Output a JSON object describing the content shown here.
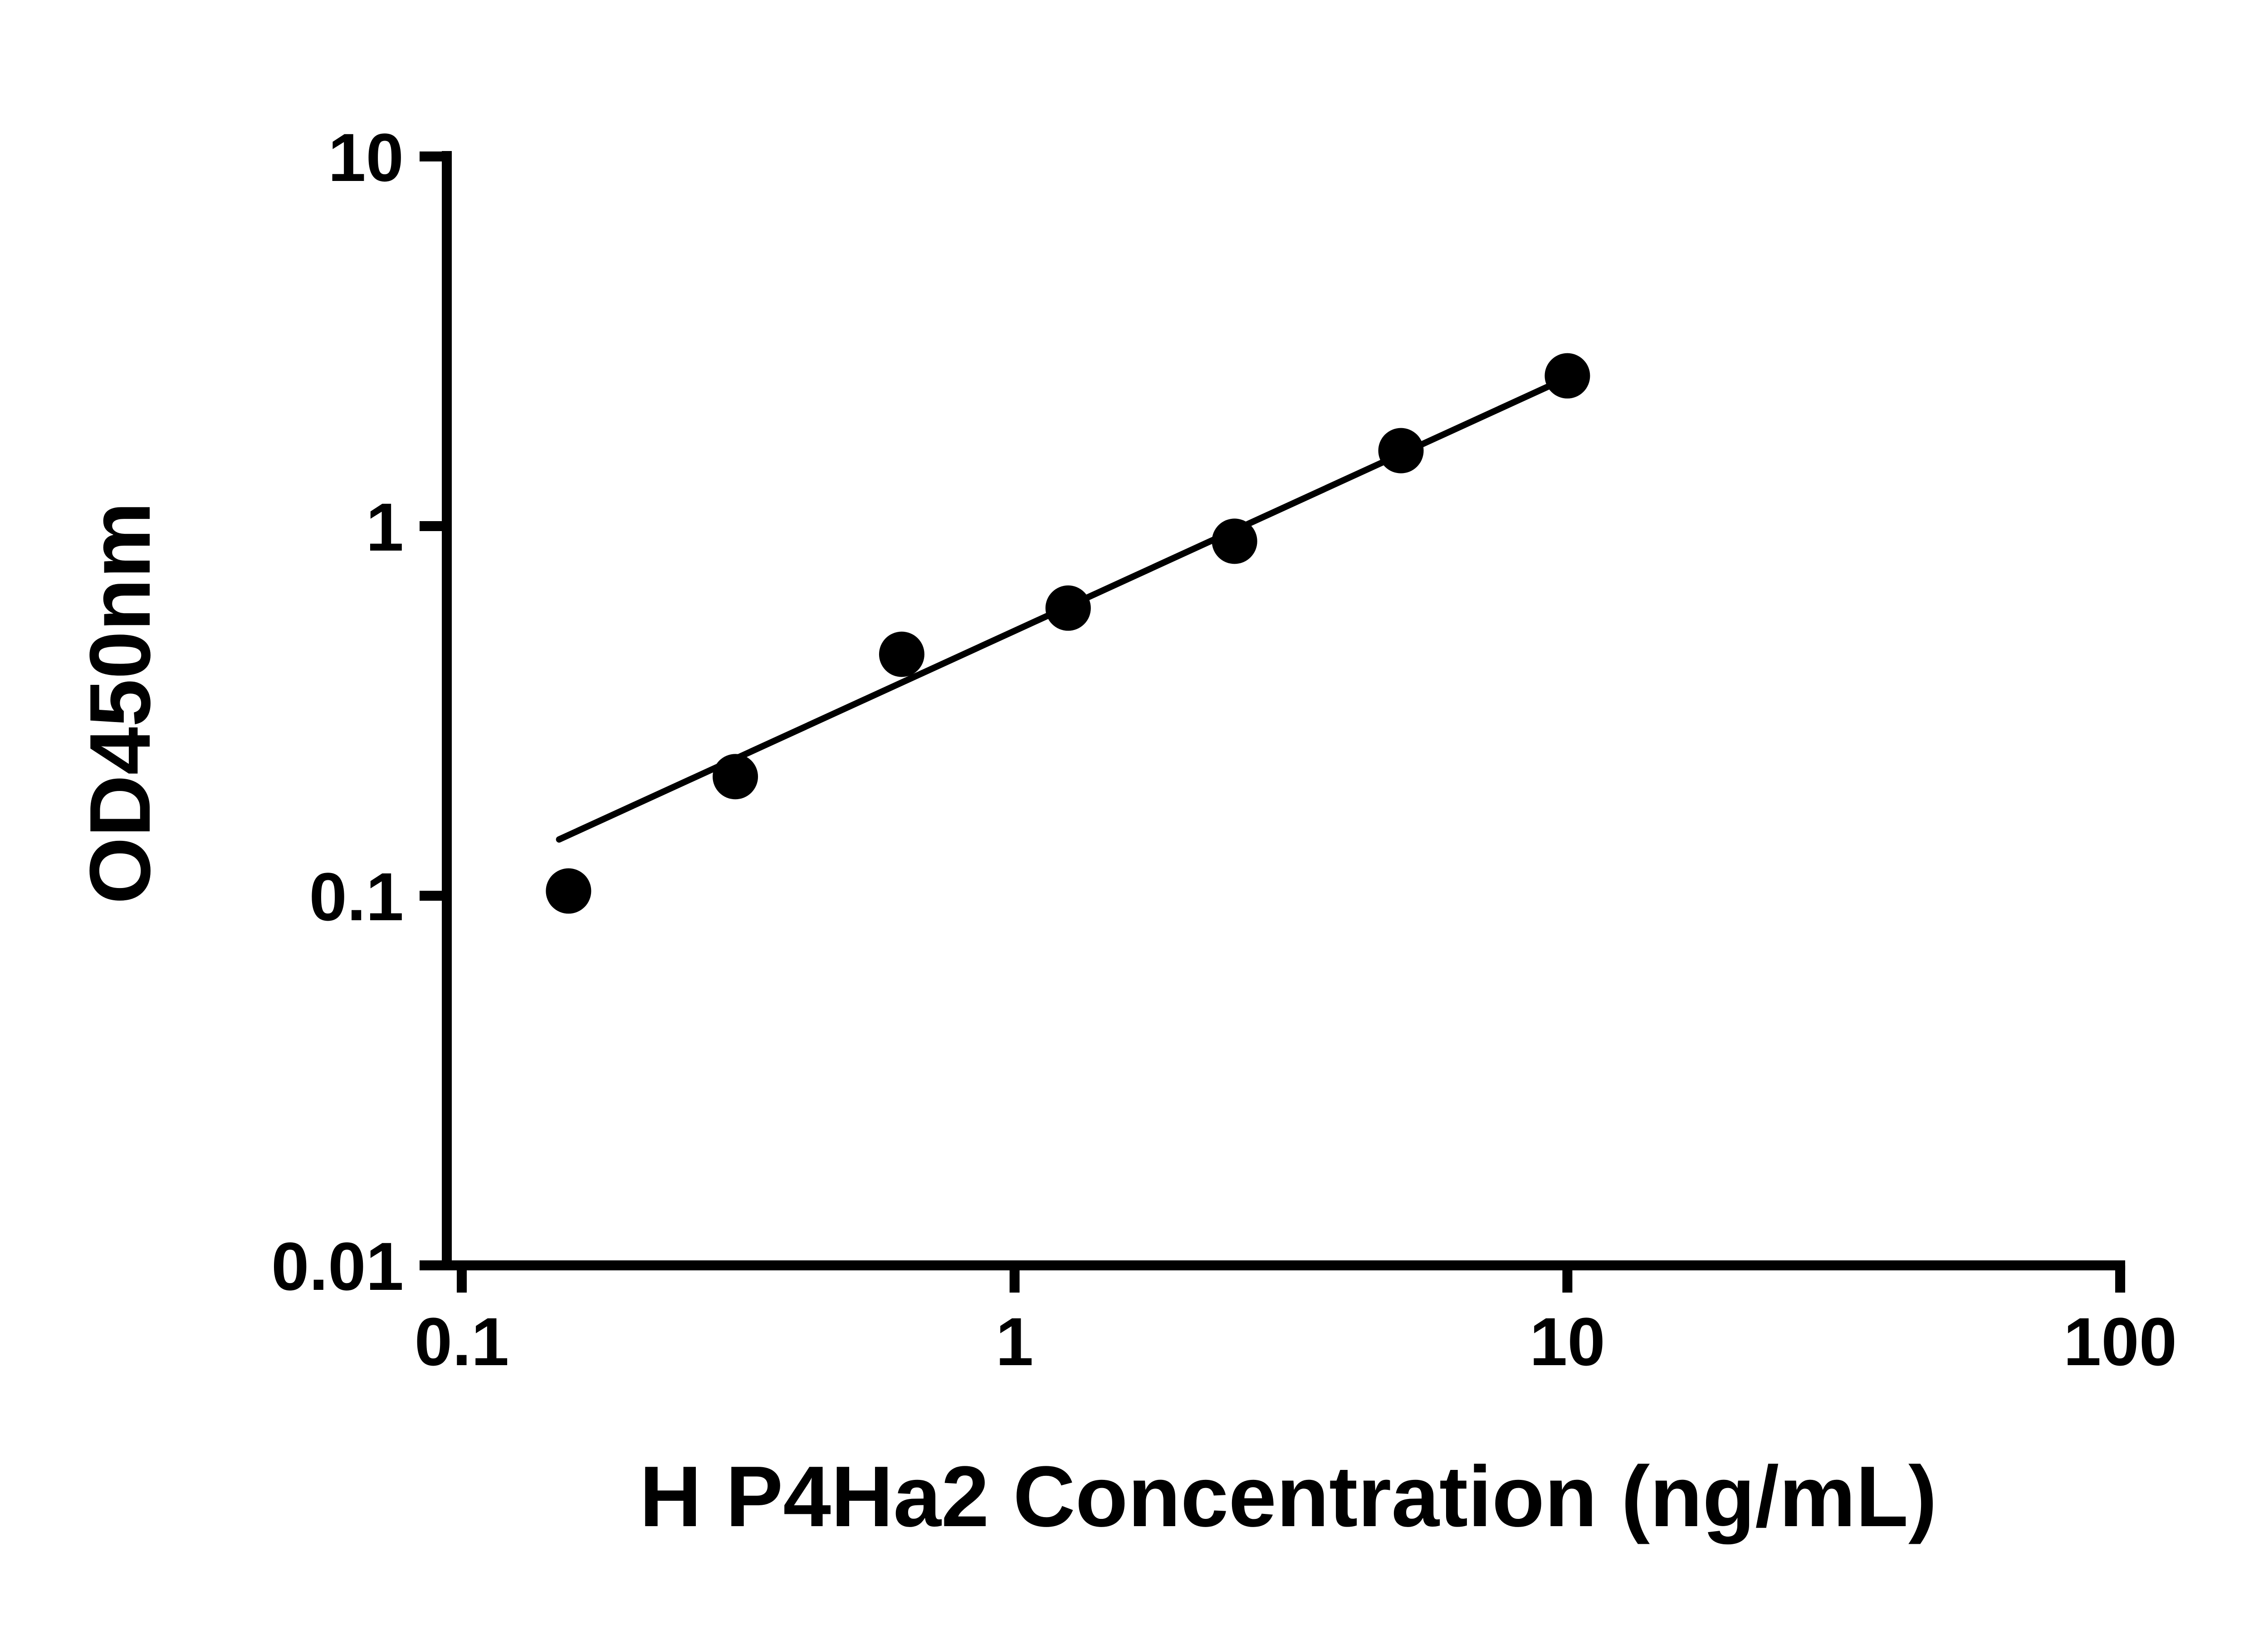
{
  "chart_data": {
    "type": "scatter",
    "title": "",
    "xlabel": "H P4Ha2 Concentration (ng/mL)",
    "ylabel": "OD450nm",
    "x_scale": "log",
    "y_scale": "log",
    "xlim": [
      0.1,
      100
    ],
    "ylim": [
      0.01,
      10
    ],
    "grid": false,
    "legend": false,
    "x_ticks": [
      {
        "value": 0.1,
        "label": "0.1"
      },
      {
        "value": 1,
        "label": "1"
      },
      {
        "value": 10,
        "label": "10"
      },
      {
        "value": 100,
        "label": "100"
      }
    ],
    "y_ticks": [
      {
        "value": 10,
        "label": "10"
      },
      {
        "value": 1,
        "label": "1"
      },
      {
        "value": 0.1,
        "label": "0.1"
      },
      {
        "value": 0.01,
        "label": "0.01"
      }
    ],
    "points": [
      {
        "x": 0.156,
        "y": 0.103
      },
      {
        "x": 0.3125,
        "y": 0.21
      },
      {
        "x": 0.625,
        "y": 0.45
      },
      {
        "x": 1.25,
        "y": 0.6
      },
      {
        "x": 2.5,
        "y": 0.91
      },
      {
        "x": 5,
        "y": 1.6
      },
      {
        "x": 10,
        "y": 2.55
      }
    ],
    "trend_line": {
      "x1": 0.15,
      "y1": 0.142,
      "x2": 10,
      "y2": 2.52
    },
    "marker_color": "#000000",
    "line_color": "#000000",
    "axis_color": "#000000"
  }
}
